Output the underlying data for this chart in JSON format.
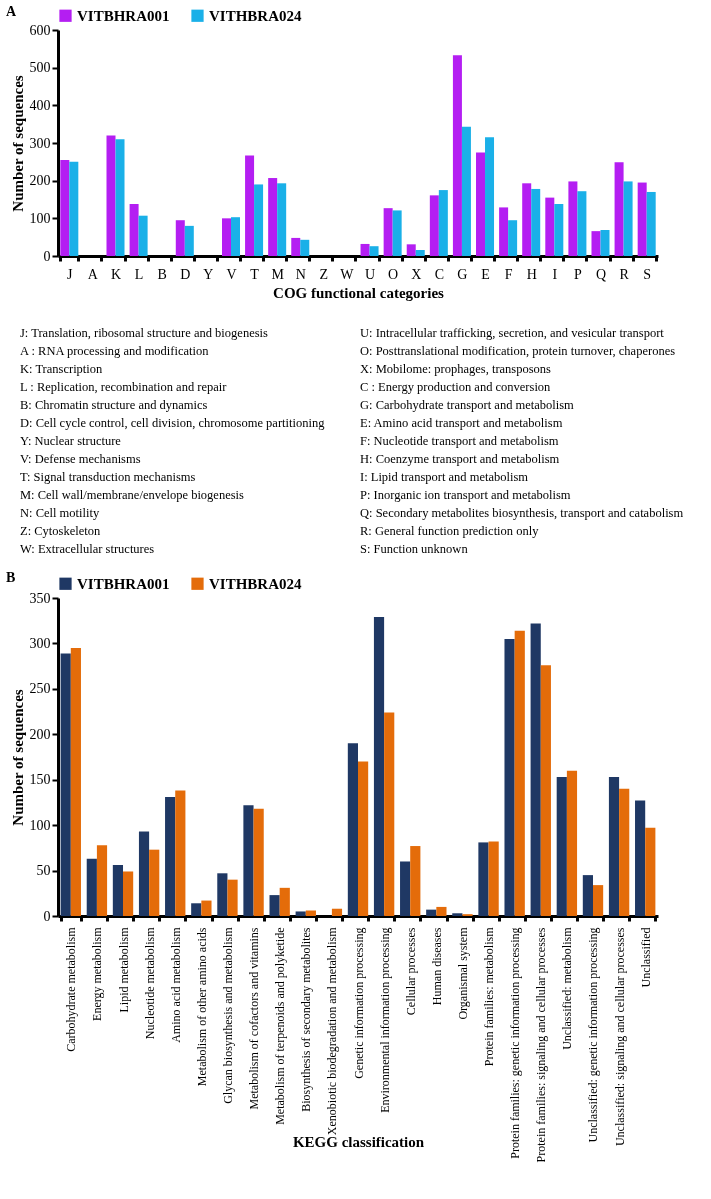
{
  "chart_data": [
    {
      "type": "bar",
      "title": "A",
      "xlabel": "COG functional categories",
      "ylabel": "Number of sequences",
      "categories": [
        "J",
        "A",
        "K",
        "L",
        "B",
        "D",
        "Y",
        "V",
        "T",
        "M",
        "N",
        "Z",
        "W",
        "U",
        "O",
        "X",
        "C",
        "G",
        "E",
        "F",
        "H",
        "I",
        "P",
        "Q",
        "R",
        "S"
      ],
      "series": [
        {
          "name": "VITBHRA001",
          "color": "#b41ef2",
          "values": [
            255,
            0,
            320,
            138,
            0,
            95,
            0,
            100,
            267,
            207,
            48,
            0,
            0,
            32,
            127,
            31,
            161,
            533,
            275,
            129,
            193,
            155,
            198,
            66,
            249,
            195
          ]
        },
        {
          "name": "VITHBRA024",
          "color": "#1ab0e8",
          "values": [
            250,
            0,
            310,
            107,
            0,
            80,
            0,
            103,
            190,
            193,
            43,
            0,
            0,
            26,
            121,
            16,
            175,
            343,
            315,
            95,
            178,
            138,
            172,
            69,
            198,
            170
          ]
        }
      ],
      "ylim": [
        0,
        600
      ],
      "yticks": [
        0,
        100,
        200,
        300,
        400,
        500,
        600
      ],
      "grid": false,
      "legend": "top",
      "annotations": [
        "J: Translation, ribosomal structure and biogenesis",
        "A : RNA processing and modification",
        "K: Transcription",
        "L : Replication, recombination and repair",
        "B: Chromatin structure and dynamics",
        "D: Cell cycle control, cell division, chromosome partitioning",
        "Y: Nuclear structure",
        "V: Defense mechanisms",
        "T: Signal transduction mechanisms",
        "M: Cell wall/membrane/envelope biogenesis",
        "N: Cell motility",
        "Z: Cytoskeleton",
        "W: Extracellular structures",
        "U: Intracellular trafficking, secretion, and vesicular transport",
        "O: Posttranslational modification, protein turnover, chaperones",
        "X: Mobilome: prophages, transposons",
        "C : Energy production and conversion",
        "G: Carbohydrate transport and metabolism",
        "E: Amino acid transport and metabolism",
        "F: Nucleotide transport and metabolism",
        "H: Coenzyme transport and metabolism",
        "I: Lipid transport and metabolism",
        "P: Inorganic ion transport and metabolism",
        "Q: Secondary metabolites biosynthesis, transport and catabolism",
        "R: General function prediction only",
        "S: Function unknown"
      ]
    },
    {
      "type": "bar",
      "title": "B",
      "xlabel": "KEGG classification",
      "ylabel": "Number of sequences",
      "categories": [
        "Carbohydrate metabolism",
        "Energy metabolism",
        "Lipid metabolism",
        "Nucleotide metabolism",
        "Amino acid metabolism",
        "Metabolism of other amino acids",
        "Glycan biosynthesis and metabolism",
        "Metabolism of cofactors and vitamins",
        "Metabolism of terpenoids and polyketide",
        "Biosynthesis of secondary metabolites",
        "Xenobiotic biodegradation and metabolism",
        "Genetic information processing",
        "Environmental information processing",
        "Cellular processes",
        "Human diseases",
        "Organismal system",
        "Protein families: metabolism",
        "Protein families: genetic information processing",
        "Protein families: signaling and cellular processes",
        "Unclassified: metabolism",
        "Unclassified: genetic information processing",
        "Unclassified: signaling and cellular processes",
        "Unclassified"
      ],
      "series": [
        {
          "name": "VITBHRA001",
          "color": "#1f3864",
          "values": [
            289,
            63,
            56,
            93,
            131,
            14,
            47,
            122,
            23,
            5,
            0,
            190,
            329,
            60,
            7,
            3,
            81,
            305,
            322,
            153,
            45,
            153,
            127
          ]
        },
        {
          "name": "VITHBRA024",
          "color": "#e46c0a",
          "values": [
            295,
            78,
            49,
            73,
            138,
            17,
            40,
            118,
            31,
            6,
            8,
            170,
            224,
            77,
            10,
            2,
            82,
            314,
            276,
            160,
            34,
            140,
            97
          ]
        }
      ],
      "ylim": [
        0,
        350
      ],
      "yticks": [
        0,
        50,
        100,
        150,
        200,
        250,
        300,
        350
      ],
      "grid": false,
      "legend": "top"
    }
  ]
}
